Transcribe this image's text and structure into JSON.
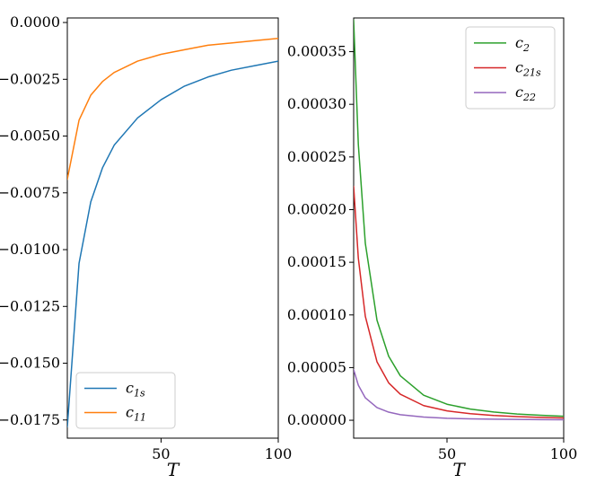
{
  "chart_data": [
    {
      "type": "line",
      "xlabel": "T",
      "ylabel": "",
      "xlim": [
        10,
        100
      ],
      "ylim": [
        -0.0183,
        0.0002
      ],
      "xticks": [
        50,
        100
      ],
      "xtick_labels": [
        "50",
        "100"
      ],
      "yticks": [
        0.0,
        -0.0025,
        -0.005,
        -0.0075,
        -0.01,
        -0.0125,
        -0.015,
        -0.0175
      ],
      "ytick_labels": [
        "0.0000",
        "−0.0025",
        "−0.0050",
        "−0.0075",
        "−0.0100",
        "−0.0125",
        "−0.0150",
        "−0.0175"
      ],
      "legend_position": "lower-left",
      "grid": false,
      "series": [
        {
          "name": "c1s",
          "display_base": "c",
          "display_sub": "1s",
          "color": "#1f77b4",
          "x": [
            10,
            15,
            20,
            25,
            30,
            40,
            50,
            60,
            70,
            80,
            90,
            100
          ],
          "y": [
            -0.0178,
            -0.0106,
            -0.0079,
            -0.0064,
            -0.0054,
            -0.0042,
            -0.0034,
            -0.0028,
            -0.0024,
            -0.0021,
            -0.0019,
            -0.0017
          ]
        },
        {
          "name": "c11",
          "display_base": "c",
          "display_sub": "11",
          "color": "#ff7f0e",
          "x": [
            10,
            15,
            20,
            25,
            30,
            40,
            50,
            60,
            70,
            80,
            90,
            100
          ],
          "y": [
            -0.0069,
            -0.0043,
            -0.0032,
            -0.0026,
            -0.0022,
            -0.0017,
            -0.0014,
            -0.0012,
            -0.001,
            -0.0009,
            -0.0008,
            -0.0007
          ]
        }
      ]
    },
    {
      "type": "line",
      "xlabel": "T",
      "ylabel": "",
      "xlim": [
        10,
        100
      ],
      "ylim": [
        -1.7e-05,
        0.000382
      ],
      "xticks": [
        50,
        100
      ],
      "xtick_labels": [
        "50",
        "100"
      ],
      "yticks": [
        0.0,
        5e-05,
        0.0001,
        0.00015,
        0.0002,
        0.00025,
        0.0003,
        0.00035
      ],
      "ytick_labels": [
        "0.00000",
        "0.00005",
        "0.00010",
        "0.00015",
        "0.00020",
        "0.00025",
        "0.00030",
        "0.00035"
      ],
      "legend_position": "upper-right",
      "grid": false,
      "series": [
        {
          "name": "c2",
          "display_base": "c",
          "display_sub": "2",
          "color": "#2ca02c",
          "x": [
            10,
            12,
            15,
            20,
            25,
            30,
            40,
            50,
            60,
            70,
            80,
            90,
            100
          ],
          "y": [
            0.00038,
            0.000262,
            0.000168,
            9.5e-05,
            6.08e-05,
            4.22e-05,
            2.38e-05,
            1.52e-05,
            1.06e-05,
            7.8e-06,
            5.9e-06,
            4.7e-06,
            3.8e-06
          ]
        },
        {
          "name": "c21s",
          "display_base": "c",
          "display_sub": "21s",
          "color": "#d62728",
          "x": [
            10,
            12,
            15,
            20,
            25,
            30,
            40,
            50,
            60,
            70,
            80,
            90,
            100
          ],
          "y": [
            0.000222,
            0.000154,
            9.87e-05,
            5.55e-05,
            3.55e-05,
            2.47e-05,
            1.39e-05,
            8.9e-06,
            6.2e-06,
            4.5e-06,
            3.5e-06,
            2.7e-06,
            2.2e-06
          ]
        },
        {
          "name": "c22",
          "display_base": "c",
          "display_sub": "22",
          "color": "#9467bd",
          "x": [
            10,
            12,
            15,
            20,
            25,
            30,
            40,
            50,
            60,
            70,
            80,
            90,
            100
          ],
          "y": [
            4.8e-05,
            3.33e-05,
            2.13e-05,
            1.2e-05,
            7.7e-06,
            5.3e-06,
            3e-06,
            1.9e-06,
            1.3e-06,
            1e-06,
            7.5e-07,
            6e-07,
            4.8e-07
          ]
        }
      ]
    }
  ]
}
